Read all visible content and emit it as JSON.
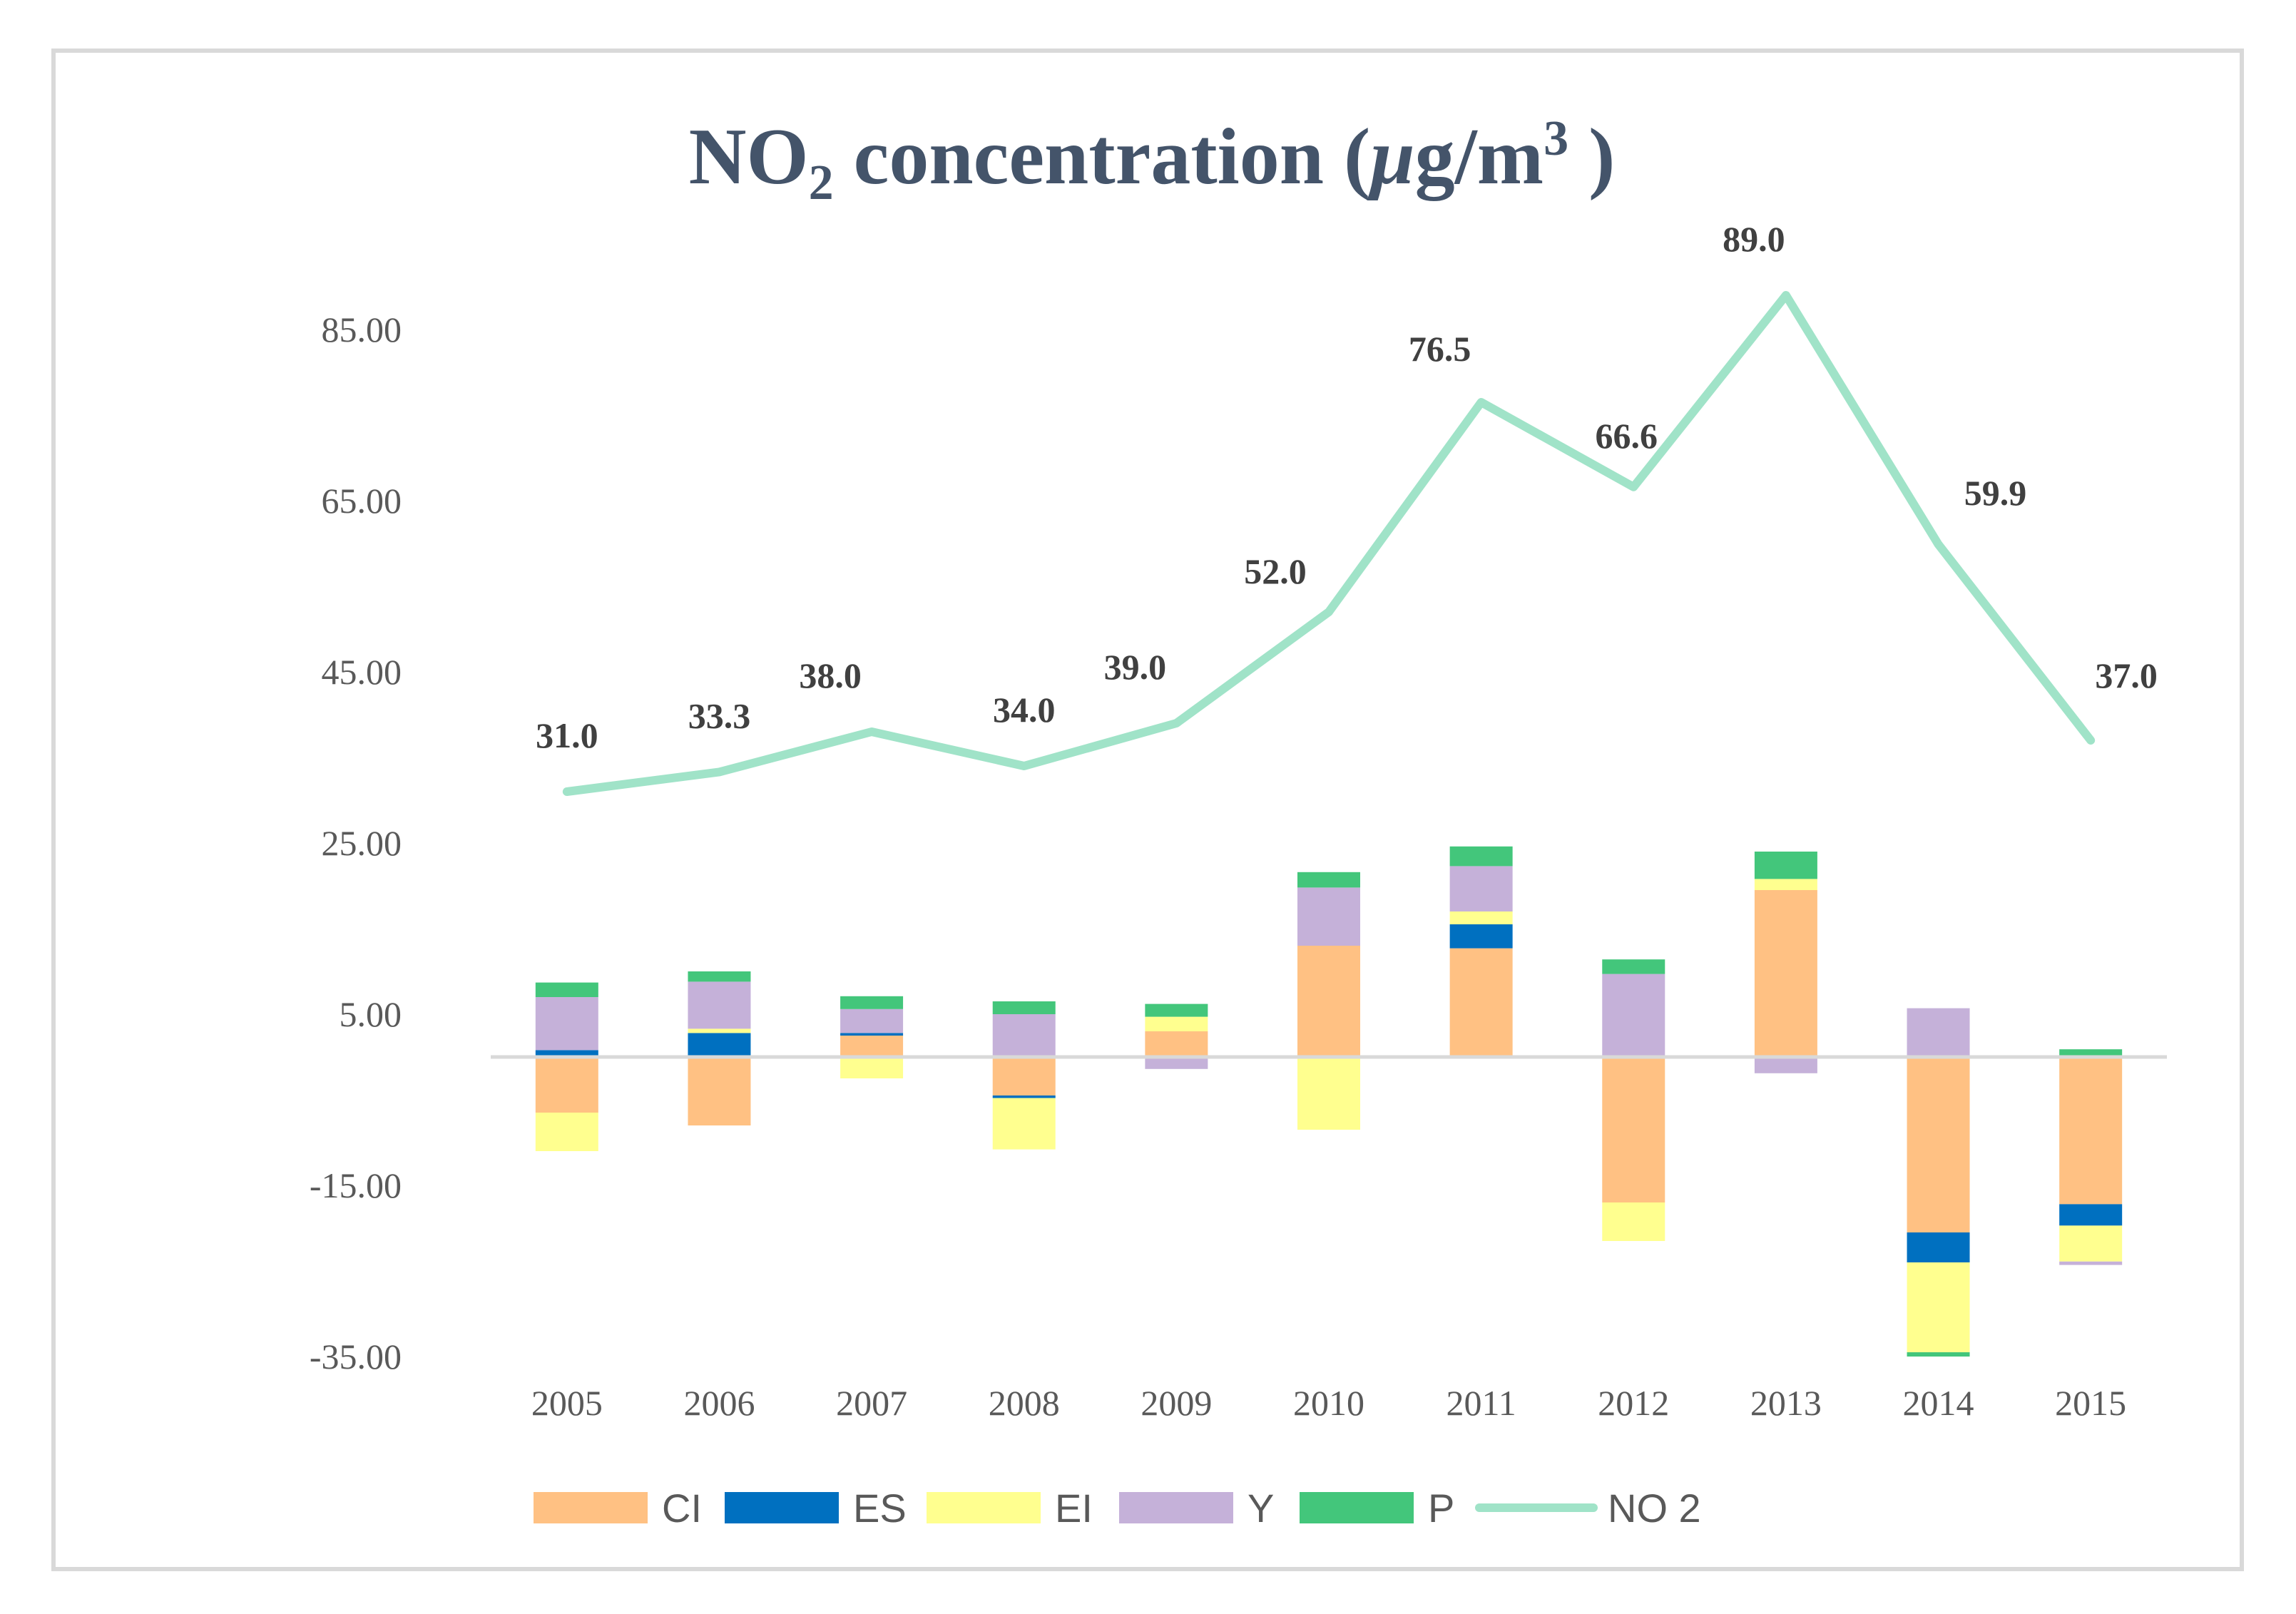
{
  "chart_data": {
    "type": "bar",
    "stacked": true,
    "title": {
      "main": "NO",
      "subscript": "2",
      "middle": " concentration (",
      "mu": "μ",
      "unit": "g/m",
      "superscript": "3",
      "close": " )"
    },
    "categories": [
      "2005",
      "2006",
      "2007",
      "2008",
      "2009",
      "2010",
      "2011",
      "2012",
      "2013",
      "2014",
      "2015"
    ],
    "yticks": [
      "85.00",
      "65.00",
      "45.00",
      "25.00",
      "5.00",
      "-15.00",
      "-35.00"
    ],
    "ytick_values": [
      85,
      65,
      45,
      25,
      5,
      -15,
      -35
    ],
    "ylim": [
      -35,
      95
    ],
    "series": [
      {
        "name": "CI",
        "color": "#ffc183",
        "values": [
          -6.5,
          -8.0,
          2.5,
          -4.5,
          3.0,
          13.0,
          12.7,
          -17.0,
          19.5,
          -20.5,
          -17.2
        ]
      },
      {
        "name": "ES",
        "color": "#0070c0",
        "values": [
          0.8,
          2.8,
          0.3,
          -0.3,
          0.0,
          0.0,
          2.8,
          0.0,
          0.0,
          -3.5,
          -2.5
        ]
      },
      {
        "name": "EI",
        "color": "#ffff8f",
        "values": [
          -4.5,
          0.5,
          -2.5,
          -6.0,
          1.7,
          -8.5,
          1.5,
          -4.5,
          1.3,
          -10.5,
          -4.2
        ]
      },
      {
        "name": "Y",
        "color": "#c5b1d9",
        "values": [
          6.2,
          5.5,
          2.8,
          5.0,
          -1.4,
          6.8,
          5.3,
          9.7,
          -1.9,
          5.7,
          -0.4
        ]
      },
      {
        "name": "P",
        "color": "#43c67b",
        "values": [
          1.7,
          1.2,
          1.5,
          1.5,
          1.5,
          1.8,
          2.3,
          1.7,
          3.2,
          -0.5,
          0.9
        ]
      }
    ],
    "line": {
      "name": "NO 2",
      "color": "#a0e3c8",
      "values": [
        31.0,
        33.3,
        38.0,
        34.0,
        39.0,
        52.0,
        76.5,
        66.6,
        89.0,
        59.9,
        37.0
      ],
      "labels": [
        "31.0",
        "33.3",
        "38.0",
        "34.0",
        "39.0",
        "52.0",
        "76.5",
        "66.6",
        "89.0",
        "59.9",
        "37.0"
      ]
    },
    "legend": [
      "CI",
      "ES",
      "EI",
      "Y",
      "P",
      "NO 2"
    ],
    "legend_position": "bottom",
    "grid": false
  }
}
